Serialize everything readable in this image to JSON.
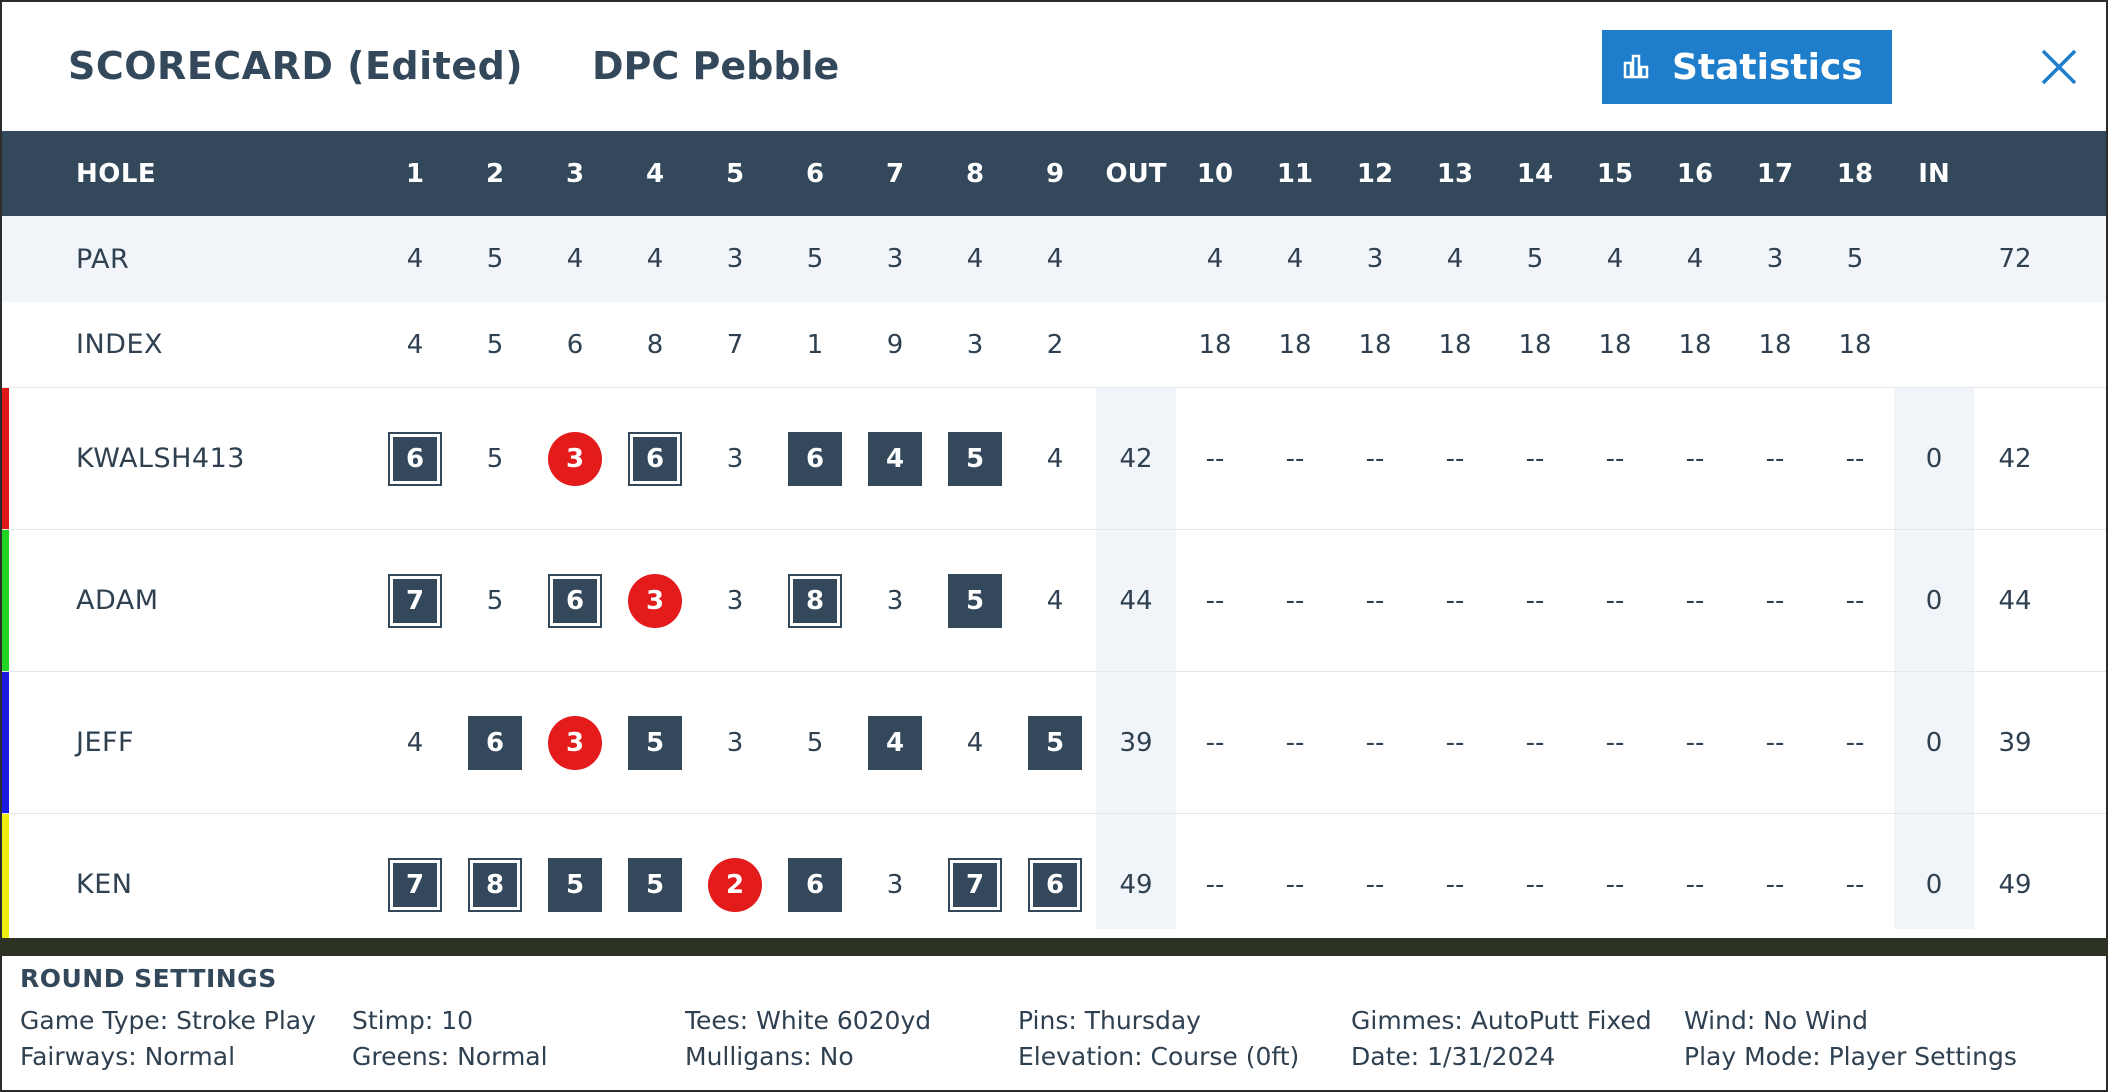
{
  "header": {
    "title": "SCORECARD (Edited)",
    "course": "DPC Pebble",
    "statistics_label": "Statistics"
  },
  "columns": [
    "HOLE",
    "1",
    "2",
    "3",
    "4",
    "5",
    "6",
    "7",
    "8",
    "9",
    "OUT",
    "10",
    "11",
    "12",
    "13",
    "14",
    "15",
    "16",
    "17",
    "18",
    "IN",
    ""
  ],
  "par": {
    "label": "PAR",
    "values": [
      "4",
      "5",
      "4",
      "4",
      "3",
      "5",
      "3",
      "4",
      "4",
      "",
      "4",
      "4",
      "3",
      "4",
      "5",
      "4",
      "4",
      "3",
      "5",
      "",
      "72"
    ]
  },
  "index": {
    "label": "INDEX",
    "values": [
      "4",
      "5",
      "6",
      "8",
      "7",
      "1",
      "9",
      "3",
      "2",
      "",
      "18",
      "18",
      "18",
      "18",
      "18",
      "18",
      "18",
      "18",
      "18",
      "",
      ""
    ]
  },
  "players": [
    {
      "name": "KWALSH413",
      "color": "#e01818",
      "scores": [
        {
          "v": "6",
          "s": "dsq"
        },
        {
          "v": "5",
          "s": ""
        },
        {
          "v": "3",
          "s": "circ"
        },
        {
          "v": "6",
          "s": "dsq"
        },
        {
          "v": "3",
          "s": ""
        },
        {
          "v": "6",
          "s": "sq"
        },
        {
          "v": "4",
          "s": "sq"
        },
        {
          "v": "5",
          "s": "sq"
        },
        {
          "v": "4",
          "s": ""
        },
        {
          "v": "42",
          "s": ""
        },
        {
          "v": "--",
          "s": ""
        },
        {
          "v": "--",
          "s": ""
        },
        {
          "v": "--",
          "s": ""
        },
        {
          "v": "--",
          "s": ""
        },
        {
          "v": "--",
          "s": ""
        },
        {
          "v": "--",
          "s": ""
        },
        {
          "v": "--",
          "s": ""
        },
        {
          "v": "--",
          "s": ""
        },
        {
          "v": "--",
          "s": ""
        },
        {
          "v": "0",
          "s": ""
        },
        {
          "v": "42",
          "s": ""
        }
      ]
    },
    {
      "name": "ADAM",
      "color": "#22d422",
      "scores": [
        {
          "v": "7",
          "s": "dsq"
        },
        {
          "v": "5",
          "s": ""
        },
        {
          "v": "6",
          "s": "dsq"
        },
        {
          "v": "3",
          "s": "circ"
        },
        {
          "v": "3",
          "s": ""
        },
        {
          "v": "8",
          "s": "dsq"
        },
        {
          "v": "3",
          "s": ""
        },
        {
          "v": "5",
          "s": "sq"
        },
        {
          "v": "4",
          "s": ""
        },
        {
          "v": "44",
          "s": ""
        },
        {
          "v": "--",
          "s": ""
        },
        {
          "v": "--",
          "s": ""
        },
        {
          "v": "--",
          "s": ""
        },
        {
          "v": "--",
          "s": ""
        },
        {
          "v": "--",
          "s": ""
        },
        {
          "v": "--",
          "s": ""
        },
        {
          "v": "--",
          "s": ""
        },
        {
          "v": "--",
          "s": ""
        },
        {
          "v": "--",
          "s": ""
        },
        {
          "v": "0",
          "s": ""
        },
        {
          "v": "44",
          "s": ""
        }
      ]
    },
    {
      "name": "JEFF",
      "color": "#1a1ae0",
      "scores": [
        {
          "v": "4",
          "s": ""
        },
        {
          "v": "6",
          "s": "sq"
        },
        {
          "v": "3",
          "s": "circ"
        },
        {
          "v": "5",
          "s": "sq"
        },
        {
          "v": "3",
          "s": ""
        },
        {
          "v": "5",
          "s": ""
        },
        {
          "v": "4",
          "s": "sq"
        },
        {
          "v": "4",
          "s": ""
        },
        {
          "v": "5",
          "s": "sq"
        },
        {
          "v": "39",
          "s": ""
        },
        {
          "v": "--",
          "s": ""
        },
        {
          "v": "--",
          "s": ""
        },
        {
          "v": "--",
          "s": ""
        },
        {
          "v": "--",
          "s": ""
        },
        {
          "v": "--",
          "s": ""
        },
        {
          "v": "--",
          "s": ""
        },
        {
          "v": "--",
          "s": ""
        },
        {
          "v": "--",
          "s": ""
        },
        {
          "v": "--",
          "s": ""
        },
        {
          "v": "0",
          "s": ""
        },
        {
          "v": "39",
          "s": ""
        }
      ]
    },
    {
      "name": "KEN",
      "color": "#f0ee10",
      "scores": [
        {
          "v": "7",
          "s": "dsq"
        },
        {
          "v": "8",
          "s": "dsq"
        },
        {
          "v": "5",
          "s": "sq"
        },
        {
          "v": "5",
          "s": "sq"
        },
        {
          "v": "2",
          "s": "circ"
        },
        {
          "v": "6",
          "s": "sq"
        },
        {
          "v": "3",
          "s": ""
        },
        {
          "v": "7",
          "s": "dsq"
        },
        {
          "v": "6",
          "s": "dsq"
        },
        {
          "v": "49",
          "s": ""
        },
        {
          "v": "--",
          "s": ""
        },
        {
          "v": "--",
          "s": ""
        },
        {
          "v": "--",
          "s": ""
        },
        {
          "v": "--",
          "s": ""
        },
        {
          "v": "--",
          "s": ""
        },
        {
          "v": "--",
          "s": ""
        },
        {
          "v": "--",
          "s": ""
        },
        {
          "v": "--",
          "s": ""
        },
        {
          "v": "--",
          "s": ""
        },
        {
          "v": "0",
          "s": ""
        },
        {
          "v": "49",
          "s": ""
        }
      ]
    }
  ],
  "round_settings": {
    "title": "ROUND SETTINGS",
    "items": [
      [
        "Game Type: Stroke Play",
        "Fairways: Normal"
      ],
      [
        "Stimp: 10",
        "Greens: Normal"
      ],
      [
        "Tees: White 6020yd",
        "Mulligans: No"
      ],
      [
        "Pins: Thursday",
        "Elevation: Course (0ft)"
      ],
      [
        "Gimmes: AutoPutt Fixed",
        "Date: 1/31/2024"
      ],
      [
        "Wind: No Wind",
        "Play Mode: Player Settings"
      ]
    ]
  },
  "colors": {
    "header_bg": "#33495b",
    "accent": "#1f7ecb",
    "under_par": "#e31b1b"
  },
  "icons": {
    "statistics": "bar-chart-icon",
    "close": "close-icon"
  }
}
